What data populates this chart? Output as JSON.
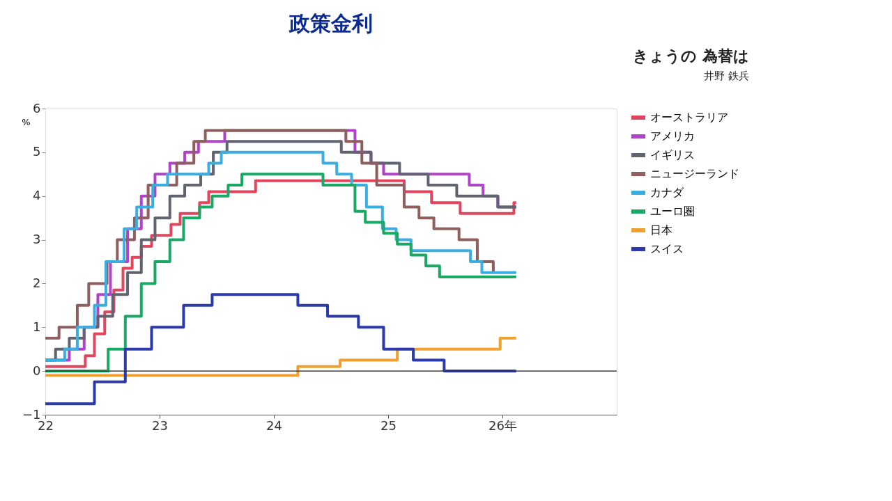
{
  "chart_data": {
    "type": "step",
    "title": "政策金利",
    "ylabel": "%",
    "annotations": [
      "きょうの 為替は",
      "井野 鉄兵"
    ],
    "xlim": [
      22,
      27
    ],
    "xticks": [
      22,
      23,
      24,
      25,
      {
        "value": 26,
        "label": "26年"
      }
    ],
    "ylim": [
      -1,
      6
    ],
    "yticks": [
      -1,
      0,
      1,
      2,
      3,
      4,
      5,
      6
    ],
    "grid": false,
    "legend": "right",
    "line_style": "solid",
    "marker": "none",
    "ref_lines": [
      {
        "axis": "y",
        "value": 0,
        "label": null,
        "color": "#333333"
      }
    ],
    "series": [
      {
        "name": "オーストラリア",
        "color": "#e0475f",
        "x": [
          22.0,
          22.35,
          22.43,
          22.52,
          22.6,
          22.68,
          22.76,
          22.84,
          22.93,
          23.1,
          23.18,
          23.35,
          23.43,
          23.84,
          25.14,
          25.38,
          25.63,
          26.1,
          26.12
        ],
        "values": [
          0.1,
          0.35,
          0.85,
          1.35,
          1.85,
          2.35,
          2.6,
          2.85,
          3.1,
          3.35,
          3.6,
          3.85,
          4.1,
          4.35,
          4.1,
          3.85,
          3.6,
          3.85,
          3.85
        ]
      },
      {
        "name": "アメリカ",
        "color": "#b044c8",
        "x": [
          22.0,
          22.21,
          22.34,
          22.46,
          22.57,
          22.72,
          22.84,
          22.96,
          23.09,
          23.22,
          23.34,
          23.57,
          24.71,
          24.85,
          24.96,
          25.71,
          25.83,
          25.96,
          26.12
        ],
        "values": [
          0.25,
          0.5,
          1.0,
          1.75,
          2.5,
          3.25,
          4.0,
          4.5,
          4.75,
          5.0,
          5.25,
          5.5,
          5.0,
          4.75,
          4.5,
          4.25,
          4.0,
          3.75,
          3.75
        ]
      },
      {
        "name": "イギリス",
        "color": "#5f6470",
        "x": [
          22.0,
          22.09,
          22.21,
          22.34,
          22.46,
          22.59,
          22.72,
          22.84,
          22.96,
          23.09,
          23.22,
          23.36,
          23.47,
          23.59,
          24.59,
          24.85,
          25.1,
          25.35,
          25.6,
          25.96,
          26.12
        ],
        "values": [
          0.25,
          0.5,
          0.75,
          1.0,
          1.25,
          1.75,
          2.25,
          3.0,
          3.5,
          4.0,
          4.25,
          4.5,
          5.0,
          5.25,
          5.0,
          4.75,
          4.5,
          4.25,
          4.0,
          3.75,
          3.75
        ]
      },
      {
        "name": "ニュージーランド",
        "color": "#8f5e5e",
        "x": [
          22.0,
          22.12,
          22.28,
          22.38,
          22.54,
          22.63,
          22.78,
          22.9,
          23.15,
          23.3,
          23.4,
          24.63,
          24.77,
          24.9,
          25.14,
          25.27,
          25.4,
          25.62,
          25.78,
          25.92
        ],
        "values": [
          0.75,
          1.0,
          1.5,
          2.0,
          2.5,
          3.0,
          3.5,
          4.25,
          4.75,
          5.25,
          5.5,
          5.25,
          4.75,
          4.25,
          3.75,
          3.5,
          3.25,
          3.0,
          2.5,
          2.25
        ]
      },
      {
        "name": "カナダ",
        "color": "#3aaee0",
        "x": [
          22.0,
          22.17,
          22.28,
          22.43,
          22.53,
          22.69,
          22.8,
          22.94,
          23.07,
          23.43,
          23.54,
          24.43,
          24.55,
          24.68,
          24.81,
          24.95,
          25.07,
          25.2,
          25.72,
          25.82,
          26.12
        ],
        "values": [
          0.25,
          0.5,
          1.0,
          1.5,
          2.5,
          3.25,
          3.75,
          4.25,
          4.5,
          4.75,
          5.0,
          4.75,
          4.5,
          4.25,
          3.75,
          3.25,
          3.0,
          2.75,
          2.5,
          2.25,
          2.25
        ]
      },
      {
        "name": "ユーロ圏",
        "color": "#1aa865",
        "x": [
          22.0,
          22.55,
          22.7,
          22.84,
          22.96,
          23.09,
          23.21,
          23.35,
          23.46,
          23.6,
          23.72,
          24.43,
          24.71,
          24.8,
          24.96,
          25.08,
          25.2,
          25.33,
          25.45,
          26.12
        ],
        "values": [
          0.0,
          0.5,
          1.25,
          2.0,
          2.5,
          3.0,
          3.5,
          3.75,
          4.0,
          4.25,
          4.5,
          4.25,
          3.65,
          3.4,
          3.15,
          2.9,
          2.65,
          2.4,
          2.15,
          2.15
        ]
      },
      {
        "name": "日本",
        "color": "#f0a030",
        "x": [
          22.0,
          24.21,
          24.58,
          25.08,
          25.98,
          26.12
        ],
        "values": [
          -0.1,
          0.1,
          0.25,
          0.5,
          0.75,
          0.75
        ]
      },
      {
        "name": "スイス",
        "color": "#2b3aa8",
        "x": [
          22.0,
          22.43,
          22.7,
          22.93,
          23.21,
          23.46,
          24.21,
          24.47,
          24.74,
          24.96,
          25.22,
          25.49,
          26.12
        ],
        "values": [
          -0.75,
          -0.25,
          0.5,
          1.0,
          1.5,
          1.75,
          1.5,
          1.25,
          1.0,
          0.5,
          0.25,
          0.0,
          0.0
        ]
      }
    ]
  }
}
